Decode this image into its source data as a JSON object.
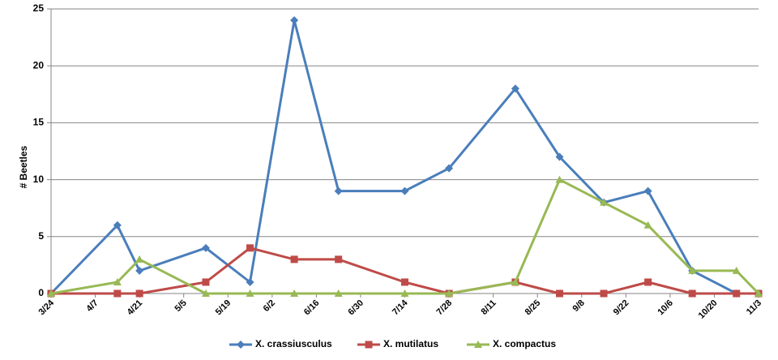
{
  "chart_data": {
    "type": "line",
    "ylabel": "# Beetles",
    "ylim": [
      0,
      25
    ],
    "yticks": [
      0,
      5,
      10,
      15,
      20,
      25
    ],
    "grid": true,
    "legend_position": "bottom",
    "x_tick_labels": [
      "3/24",
      "4/7",
      "4/21",
      "5/5",
      "5/19",
      "6/2",
      "6/16",
      "6/30",
      "7/14",
      "7/28",
      "8/11",
      "8/25",
      "9/8",
      "9/22",
      "10/6",
      "10/20",
      "11/3"
    ],
    "x_range": [
      "3/24",
      "11/3"
    ],
    "series": [
      {
        "name": "X. crassiusculus",
        "color": "#4a7ebb",
        "marker": "diamond",
        "points": [
          {
            "x": "3/24",
            "y": 0
          },
          {
            "x": "4/14",
            "y": 6
          },
          {
            "x": "4/21",
            "y": 2
          },
          {
            "x": "5/12",
            "y": 4
          },
          {
            "x": "5/26",
            "y": 1
          },
          {
            "x": "6/9",
            "y": 24
          },
          {
            "x": "6/23",
            "y": 9
          },
          {
            "x": "7/14",
            "y": 9
          },
          {
            "x": "7/28",
            "y": 11
          },
          {
            "x": "8/18",
            "y": 18
          },
          {
            "x": "9/1",
            "y": 12
          },
          {
            "x": "9/15",
            "y": 8
          },
          {
            "x": "9/29",
            "y": 9
          },
          {
            "x": "10/13",
            "y": 2
          },
          {
            "x": "10/27",
            "y": 0
          },
          {
            "x": "11/3",
            "y": 0
          }
        ]
      },
      {
        "name": "X. mutilatus",
        "color": "#be4b48",
        "marker": "square",
        "points": [
          {
            "x": "3/24",
            "y": 0
          },
          {
            "x": "4/14",
            "y": 0
          },
          {
            "x": "4/21",
            "y": 0
          },
          {
            "x": "5/12",
            "y": 1
          },
          {
            "x": "5/26",
            "y": 4
          },
          {
            "x": "6/9",
            "y": 3
          },
          {
            "x": "6/23",
            "y": 3
          },
          {
            "x": "7/14",
            "y": 1
          },
          {
            "x": "7/28",
            "y": 0
          },
          {
            "x": "8/18",
            "y": 1
          },
          {
            "x": "9/1",
            "y": 0
          },
          {
            "x": "9/15",
            "y": 0
          },
          {
            "x": "9/29",
            "y": 1
          },
          {
            "x": "10/13",
            "y": 0
          },
          {
            "x": "10/27",
            "y": 0
          },
          {
            "x": "11/3",
            "y": 0
          }
        ]
      },
      {
        "name": "X. compactus",
        "color": "#98b954",
        "marker": "triangle",
        "points": [
          {
            "x": "3/24",
            "y": 0
          },
          {
            "x": "4/14",
            "y": 1
          },
          {
            "x": "4/21",
            "y": 3
          },
          {
            "x": "5/12",
            "y": 0
          },
          {
            "x": "5/26",
            "y": 0
          },
          {
            "x": "6/9",
            "y": 0
          },
          {
            "x": "6/23",
            "y": 0
          },
          {
            "x": "7/14",
            "y": 0
          },
          {
            "x": "7/28",
            "y": 0
          },
          {
            "x": "8/18",
            "y": 1
          },
          {
            "x": "9/1",
            "y": 10
          },
          {
            "x": "9/15",
            "y": 8
          },
          {
            "x": "9/29",
            "y": 6
          },
          {
            "x": "10/13",
            "y": 2
          },
          {
            "x": "10/27",
            "y": 2
          },
          {
            "x": "11/3",
            "y": 0
          }
        ]
      }
    ]
  }
}
